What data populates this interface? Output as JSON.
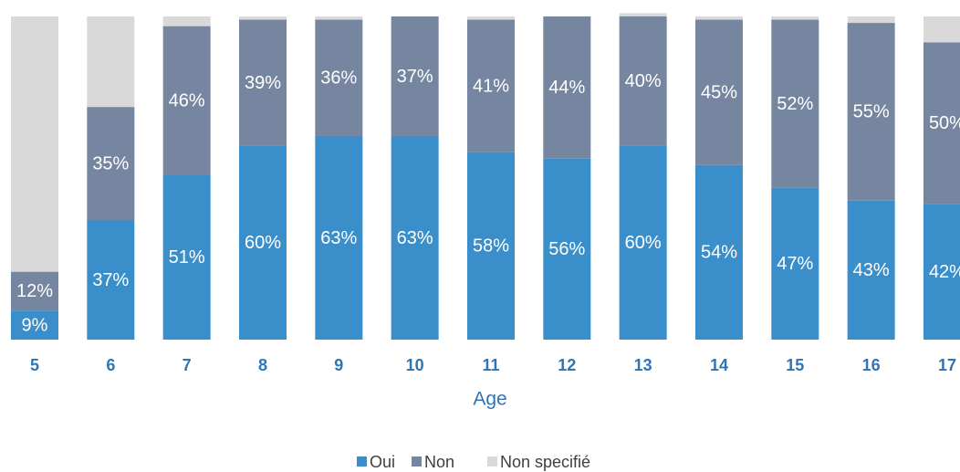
{
  "chart_data": {
    "type": "bar",
    "stacked": true,
    "x_label": "Age",
    "categories": [
      "5",
      "6",
      "7",
      "8",
      "9",
      "10",
      "11",
      "12",
      "13",
      "14",
      "15",
      "16",
      "17"
    ],
    "series": [
      {
        "name": "Oui",
        "color": "#3a8fcb",
        "values": [
          9,
          37,
          51,
          60,
          63,
          63,
          58,
          56,
          60,
          54,
          47,
          43,
          42
        ],
        "value_labels": [
          "9%",
          "37%",
          "51%",
          "60%",
          "63%",
          "63%",
          "58%",
          "56%",
          "60%",
          "54%",
          "47%",
          "43%",
          "42%"
        ]
      },
      {
        "name": "Non",
        "color": "#7686a0",
        "values": [
          12,
          35,
          46,
          39,
          36,
          37,
          41,
          44,
          40,
          45,
          52,
          55,
          50
        ],
        "value_labels": [
          "12%",
          "35%",
          "46%",
          "39%",
          "36%",
          "37%",
          "41%",
          "44%",
          "40%",
          "45%",
          "52%",
          "55%",
          "50%"
        ]
      },
      {
        "name": "Non specifié",
        "color": "#d9d9d9",
        "values": [
          79,
          28,
          3,
          1,
          1,
          0,
          1,
          0,
          1,
          1,
          1,
          2,
          8
        ]
      }
    ],
    "ylim": [
      0,
      100
    ],
    "legend": "bottom"
  }
}
